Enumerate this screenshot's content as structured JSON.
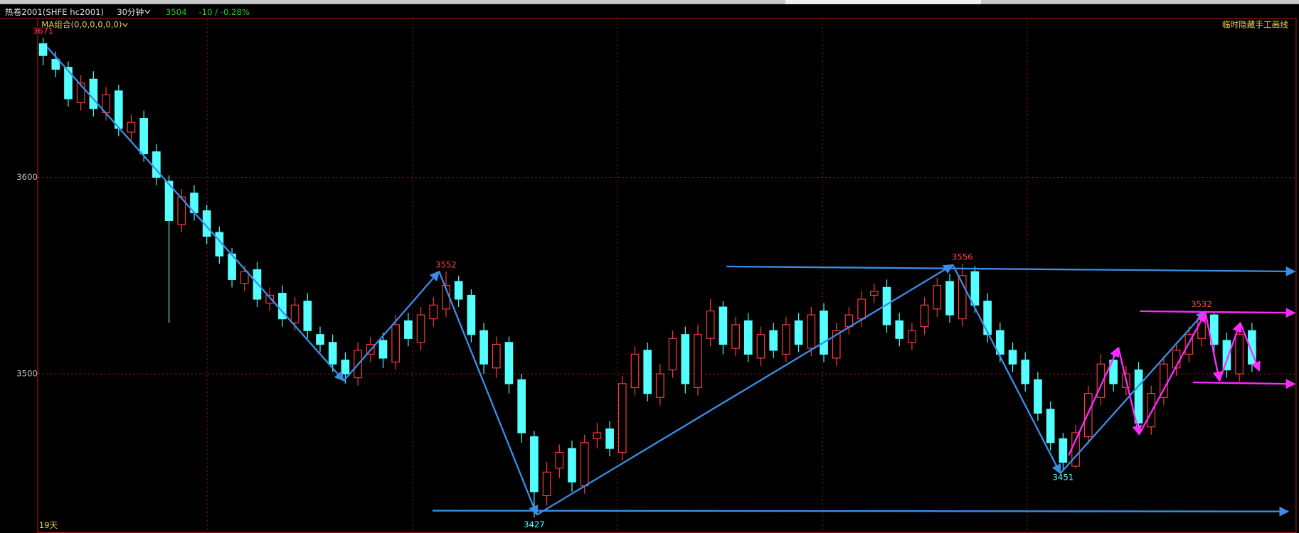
{
  "header": {
    "instrument": "热卷2001(SHFE hc2001)",
    "period": "30分钟",
    "price": "3504",
    "change": "-10 / -0.28%",
    "indicator": "MA组合(0,0,0,0,0,0)",
    "hide_button": "临时隐藏手工画线",
    "footer": "19天"
  },
  "chart_data": {
    "type": "candlestick",
    "open": [
      3668,
      3660,
      3656,
      3638,
      3650,
      3633,
      3644,
      3623,
      3630,
      3613,
      3598,
      3576,
      3592,
      3583,
      3572,
      3561,
      3546,
      3553,
      3536,
      3541,
      3526,
      3537,
      3520,
      3516,
      3507,
      3498,
      3510,
      3517,
      3506,
      3527,
      3516,
      3528,
      3533,
      3547,
      3540,
      3522,
      3503,
      3516,
      3497,
      3468,
      3438,
      3452,
      3462,
      3443,
      3467,
      3472,
      3460,
      3493,
      3512,
      3488,
      3502,
      3520,
      3493,
      3518,
      3534,
      3513,
      3527,
      3508,
      3522,
      3510,
      3527,
      3513,
      3532,
      3508,
      3524,
      3528,
      3540,
      3544,
      3527,
      3516,
      3524,
      3533,
      3547,
      3528,
      3552,
      3537,
      3522,
      3512,
      3507,
      3497,
      3482,
      3467,
      3453,
      3468,
      3488,
      3507,
      3493,
      3502,
      3473,
      3488,
      3503,
      3510,
      3518,
      3530,
      3517,
      3500,
      3522
    ],
    "high": [
      3671,
      3664,
      3659,
      3652,
      3654,
      3646,
      3647,
      3632,
      3634,
      3617,
      3601,
      3594,
      3596,
      3586,
      3575,
      3564,
      3555,
      3557,
      3544,
      3545,
      3539,
      3541,
      3524,
      3520,
      3511,
      3516,
      3519,
      3521,
      3530,
      3531,
      3534,
      3539,
      3552,
      3550,
      3543,
      3526,
      3519,
      3519,
      3500,
      3471,
      3455,
      3464,
      3466,
      3469,
      3475,
      3476,
      3499,
      3514,
      3516,
      3505,
      3522,
      3524,
      3525,
      3538,
      3537,
      3529,
      3531,
      3524,
      3526,
      3529,
      3531,
      3534,
      3536,
      3526,
      3534,
      3542,
      3546,
      3548,
      3531,
      3526,
      3539,
      3549,
      3551,
      3556,
      3555,
      3541,
      3526,
      3516,
      3511,
      3501,
      3486,
      3470,
      3474,
      3494,
      3510,
      3511,
      3504,
      3506,
      3494,
      3509,
      3516,
      3524,
      3532,
      3531,
      3521,
      3524,
      3526
    ],
    "low": [
      3657,
      3651,
      3636,
      3634,
      3631,
      3629,
      3621,
      3619,
      3608,
      3596,
      3526,
      3572,
      3578,
      3566,
      3556,
      3544,
      3542,
      3534,
      3532,
      3524,
      3522,
      3518,
      3511,
      3501,
      3495,
      3494,
      3506,
      3503,
      3502,
      3514,
      3512,
      3524,
      3529,
      3534,
      3516,
      3500,
      3498,
      3490,
      3465,
      3427,
      3433,
      3447,
      3440,
      3439,
      3462,
      3458,
      3456,
      3489,
      3486,
      3484,
      3498,
      3490,
      3489,
      3514,
      3510,
      3509,
      3506,
      3504,
      3508,
      3506,
      3511,
      3509,
      3506,
      3504,
      3520,
      3524,
      3536,
      3521,
      3514,
      3512,
      3520,
      3529,
      3526,
      3524,
      3531,
      3516,
      3506,
      3501,
      3491,
      3476,
      3461,
      3451,
      3452,
      3464,
      3484,
      3491,
      3489,
      3471,
      3469,
      3484,
      3499,
      3506,
      3514,
      3511,
      3498,
      3496,
      3501
    ],
    "close": [
      3662,
      3655,
      3640,
      3648,
      3635,
      3642,
      3625,
      3628,
      3612,
      3600,
      3578,
      3590,
      3582,
      3570,
      3560,
      3548,
      3552,
      3538,
      3540,
      3528,
      3535,
      3522,
      3515,
      3505,
      3500,
      3512,
      3515,
      3508,
      3525,
      3518,
      3530,
      3535,
      3545,
      3538,
      3520,
      3505,
      3515,
      3495,
      3470,
      3440,
      3450,
      3460,
      3445,
      3465,
      3470,
      3462,
      3495,
      3510,
      3490,
      3500,
      3518,
      3495,
      3520,
      3532,
      3515,
      3525,
      3510,
      3520,
      3512,
      3525,
      3515,
      3530,
      3510,
      3522,
      3530,
      3538,
      3542,
      3525,
      3518,
      3522,
      3535,
      3545,
      3530,
      3550,
      3535,
      3520,
      3510,
      3505,
      3495,
      3480,
      3465,
      3455,
      3470,
      3490,
      3505,
      3495,
      3500,
      3475,
      3490,
      3505,
      3512,
      3520,
      3528,
      3515,
      3502,
      3520,
      3505
    ],
    "up_color": "#ff3c3c",
    "down_color": "#54ffff",
    "high_labels": [
      3671,
      3552,
      3556,
      3532
    ],
    "low_labels": [
      3427,
      3451
    ],
    "ylim": [
      3419,
      3681
    ],
    "yticks": [
      3500,
      3600
    ],
    "grid": true
  }
}
